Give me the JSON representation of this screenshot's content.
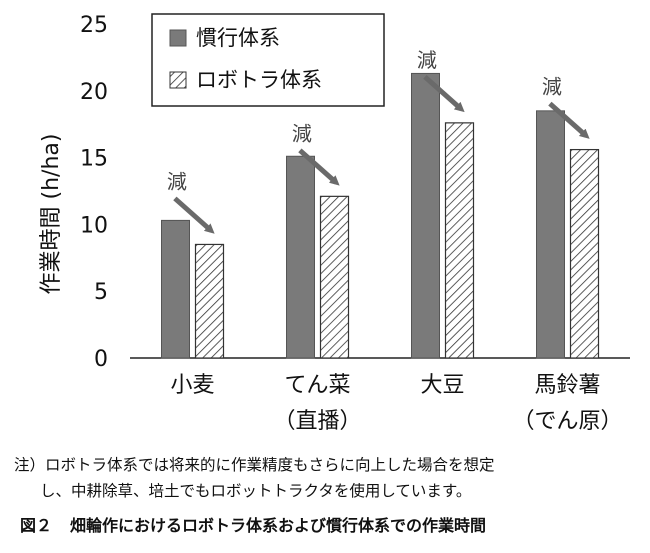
{
  "chart_data": {
    "type": "bar",
    "ylabel": "作業時間 (h/ha)",
    "ylim": [
      0,
      25
    ],
    "yticks": [
      0,
      5,
      10,
      15,
      20,
      25
    ],
    "categories": [
      {
        "line1": "小麦",
        "line2": ""
      },
      {
        "line1": "てん菜",
        "line2": "（直播）"
      },
      {
        "line1": "大豆",
        "line2": ""
      },
      {
        "line1": "馬鈴薯",
        "line2": "（でん原）"
      }
    ],
    "series": [
      {
        "name": "慣行体系",
        "values": [
          10.3,
          15.1,
          21.3,
          18.5
        ],
        "fill": "#7a7a7a",
        "pattern": "solid"
      },
      {
        "name": "ロボトラ体系",
        "values": [
          8.5,
          12.1,
          17.6,
          15.6
        ],
        "fill": "#ffffff",
        "pattern": "hatch"
      }
    ],
    "annotation": "減",
    "legend_position": "top"
  },
  "note": {
    "line1": "注）ロボトラ体系では将来的に作業精度もさらに向上した場合を想定",
    "line2": "し、中耕除草、培土でもロボットトラクタを使用しています。"
  },
  "caption": {
    "figure_number": "図２",
    "title": "畑輪作におけるロボトラ体系および慣行体系での作業時間"
  }
}
